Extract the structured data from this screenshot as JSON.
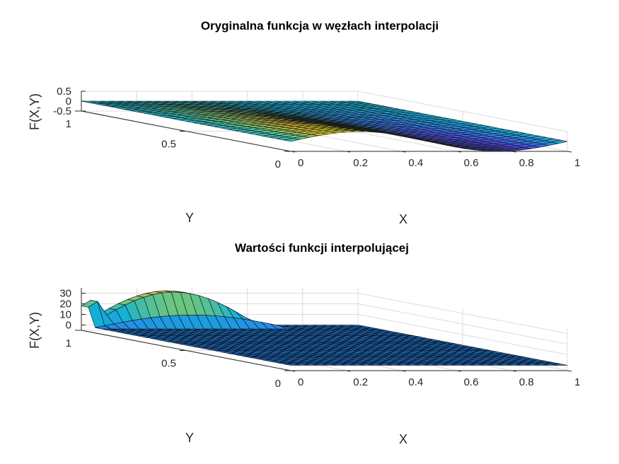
{
  "chart_data": [
    {
      "type": "surface",
      "title": "Oryginalna funkcja w węzłach interpolacji",
      "xlabel": "X",
      "ylabel": "Y",
      "zlabel": "F(X,Y)",
      "xlim": [
        0,
        1
      ],
      "ylim": [
        0,
        1
      ],
      "zlim": [
        -0.5,
        0.5
      ],
      "x_ticks": [
        "0",
        "0.2",
        "0.4",
        "0.6",
        "0.8",
        "1"
      ],
      "y_ticks": [
        "0",
        "0.5",
        "1"
      ],
      "z_ticks": [
        "-0.5",
        "0",
        "0.5"
      ],
      "grid": true,
      "colormap": "parula",
      "function_description": "z ≈ 0.5·sin(2πx)·(1−y), sampled on a 31×31 grid",
      "grid_size": 31
    },
    {
      "type": "surface",
      "title": "Wartości funkcji interpolującej",
      "xlabel": "X",
      "ylabel": "Y",
      "zlabel": "F(X,Y)",
      "xlim": [
        0,
        1
      ],
      "ylim": [
        0,
        1
      ],
      "zlim": [
        -5,
        35
      ],
      "x_ticks": [
        "0",
        "0.2",
        "0.4",
        "0.6",
        "0.8",
        "1"
      ],
      "y_ticks": [
        "0",
        "0.5",
        "1"
      ],
      "z_ticks": [
        "0",
        "10",
        "20",
        "30"
      ],
      "grid": true,
      "colormap": "parula",
      "edge_peak_value": 34,
      "interior_value": 0
    }
  ]
}
